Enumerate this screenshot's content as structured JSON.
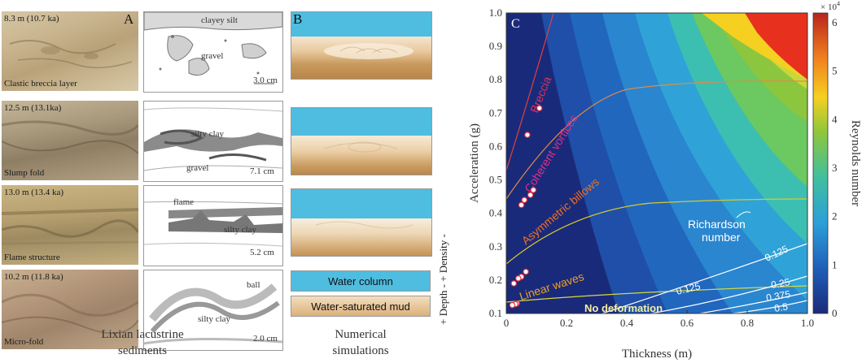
{
  "panel_a": {
    "letter": "A",
    "rows": [
      {
        "depth_label": "8.3 m (10.7 ka)",
        "structure_label": "Clastic breccia layer",
        "sketch_labels": [
          "clayey silt",
          "gravel"
        ],
        "scale": "3.0 cm"
      },
      {
        "depth_label": "12.5 m (13.1ka)",
        "structure_label": "Slump fold",
        "sketch_labels": [
          "silty clay",
          "gravel"
        ],
        "scale": "7.1 cm"
      },
      {
        "depth_label": "13.0 m (13.4 ka)",
        "structure_label": "Flame structure",
        "sketch_labels": [
          "flame",
          "silty clay"
        ],
        "scale": "5.2 cm"
      },
      {
        "depth_label": "10.2 m (11.8 ka)",
        "structure_label": "Micro-fold",
        "sketch_labels": [
          "silty clay",
          "ball"
        ],
        "scale": "2.0 cm"
      }
    ],
    "caption_line1": "Lixian lacustrine",
    "caption_line2": "sediments"
  },
  "panel_b": {
    "letter": "B",
    "legend_water": "Water column",
    "legend_mud": "Water-saturated mud",
    "side_label": "+ Depth -   + Density -",
    "caption_line1": "Numerical",
    "caption_line2": "simulations"
  },
  "chart_data": {
    "type": "heatmap",
    "panel_letter": "C",
    "xlabel": "Thickness (m)",
    "ylabel": "Acceleration (g)",
    "xlim": [
      0,
      1.0
    ],
    "ylim": [
      0.1,
      1.0
    ],
    "x_ticks": [
      "0",
      "0.2",
      "0.4",
      "0.6",
      "0.8",
      "1.0"
    ],
    "y_ticks": [
      "0.1",
      "0.2",
      "0.3",
      "0.4",
      "0.5",
      "0.6",
      "0.7",
      "0.8",
      "0.9",
      "1.0"
    ],
    "colorbar": {
      "label": "Reynolds number",
      "multiplier": "× 10",
      "exponent": "4",
      "range": [
        0,
        6.2
      ],
      "ticks": [
        "0",
        "1",
        "2",
        "3",
        "4",
        "5",
        "6"
      ]
    },
    "regimes": [
      {
        "name": "Breccia",
        "color": "#e8304a"
      },
      {
        "name": "Coherent vortices",
        "color": "#e8306a"
      },
      {
        "name": "Asymmetric billows",
        "color": "#f07020"
      },
      {
        "name": "Linear waves",
        "color": "#f0a020"
      },
      {
        "name": "No deformation",
        "color": "#f4f0a0"
      }
    ],
    "richardson_label_line1": "Richardson",
    "richardson_label_line2": "number",
    "richardson_contours": [
      "0.125",
      "0.125",
      "0.25",
      "0.375",
      "0.5"
    ],
    "sample_points": [
      {
        "x": 0.11,
        "y": 0.715
      },
      {
        "x": 0.07,
        "y": 0.635
      },
      {
        "x": 0.09,
        "y": 0.47
      },
      {
        "x": 0.08,
        "y": 0.455
      },
      {
        "x": 0.06,
        "y": 0.44
      },
      {
        "x": 0.05,
        "y": 0.425
      },
      {
        "x": 0.065,
        "y": 0.225
      },
      {
        "x": 0.05,
        "y": 0.21
      },
      {
        "x": 0.04,
        "y": 0.205
      },
      {
        "x": 0.025,
        "y": 0.19
      },
      {
        "x": 0.035,
        "y": 0.13
      },
      {
        "x": 0.03,
        "y": 0.128
      },
      {
        "x": 0.02,
        "y": 0.125
      }
    ]
  }
}
